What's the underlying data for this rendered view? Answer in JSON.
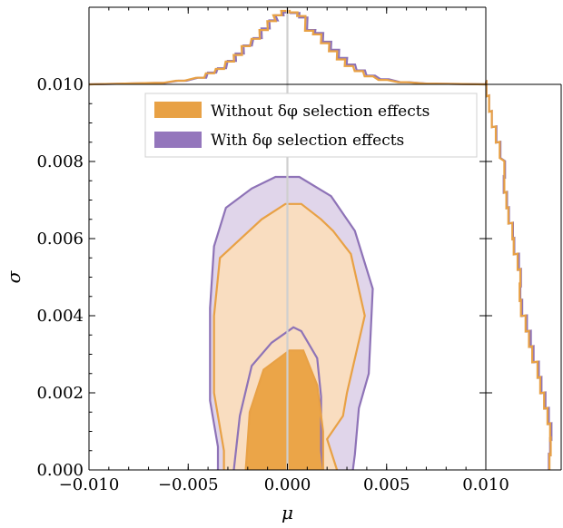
{
  "chart_data": {
    "type": "contour",
    "xlabel": "μ",
    "ylabel": "σ",
    "xlim": [
      -0.01,
      0.01
    ],
    "ylim": [
      0.0,
      0.01
    ],
    "x_ticks": [
      "−0.010",
      "−0.005",
      "0.000",
      "0.005",
      "0.010"
    ],
    "y_ticks": [
      "0.000",
      "0.002",
      "0.004",
      "0.006",
      "0.008",
      "0.010"
    ],
    "x_tick_values": [
      -0.01,
      -0.005,
      0.0,
      0.005,
      0.01
    ],
    "y_tick_values": [
      0.0,
      0.002,
      0.004,
      0.006,
      0.008,
      0.01
    ],
    "legend_position": "upper-center",
    "reference_line_x": 0.0,
    "colors": {
      "without_line": "#E8A145",
      "without_inner_fill": "#EBA548",
      "without_outer_fill": "#F9DDC0",
      "with_line": "#8E73B7",
      "with_outer_fill": "#E0D5EA",
      "reference_line": "#CFCFCF"
    },
    "series": [
      {
        "name": "Without δφ selection effects",
        "color": "#E8A145",
        "contour_68": [
          [
            -0.0021,
            0
          ],
          [
            -0.0019,
            0.0015
          ],
          [
            -0.0012,
            0.0026
          ],
          [
            0.0001,
            0.0031
          ],
          [
            0.0008,
            0.0031
          ],
          [
            0.0015,
            0.0022
          ],
          [
            0.0018,
            0.001
          ],
          [
            0.0018,
            0
          ]
        ],
        "contour_95": [
          [
            -0.0032,
            0
          ],
          [
            -0.0032,
            0.0005
          ],
          [
            -0.0037,
            0.002
          ],
          [
            -0.0037,
            0.004
          ],
          [
            -0.0034,
            0.0055
          ],
          [
            -0.0013,
            0.0065
          ],
          [
            -0.0001,
            0.0069
          ],
          [
            0.0007,
            0.0069
          ],
          [
            0.0017,
            0.0065
          ],
          [
            0.0023,
            0.0062
          ],
          [
            0.0032,
            0.0056
          ],
          [
            0.0039,
            0.004
          ],
          [
            0.003,
            0.002
          ],
          [
            0.0028,
            0.0014
          ],
          [
            0.002,
            0.0008
          ],
          [
            0.0025,
            0
          ]
        ],
        "mu_hist": [
          [
            -0.0065,
            0.02
          ],
          [
            -0.0054,
            0.05
          ],
          [
            -0.0044,
            0.09
          ],
          [
            -0.0039,
            0.15
          ],
          [
            -0.0034,
            0.21
          ],
          [
            -0.0029,
            0.31
          ],
          [
            -0.0025,
            0.4
          ],
          [
            -0.0021,
            0.52
          ],
          [
            -0.0016,
            0.62
          ],
          [
            -0.0012,
            0.74
          ],
          [
            -0.0008,
            0.86
          ],
          [
            -0.0005,
            0.94
          ],
          [
            -0.0001,
            1.0
          ],
          [
            0.0003,
            0.98
          ],
          [
            0.0007,
            0.93
          ],
          [
            0.0011,
            0.73
          ],
          [
            0.0015,
            0.68
          ],
          [
            0.0019,
            0.56
          ],
          [
            0.0023,
            0.45
          ],
          [
            0.0027,
            0.34
          ],
          [
            0.0031,
            0.25
          ],
          [
            0.0036,
            0.18
          ],
          [
            0.0041,
            0.11
          ],
          [
            0.0048,
            0.06
          ],
          [
            0.0058,
            0.03
          ],
          [
            0.0072,
            0.01
          ]
        ],
        "sigma_hist": [
          [
            0.0099,
            0.01
          ],
          [
            0.0095,
            0.05
          ],
          [
            0.0091,
            0.09
          ],
          [
            0.0087,
            0.15
          ],
          [
            0.0083,
            0.21
          ],
          [
            0.0078,
            0.28
          ],
          [
            0.0074,
            0.28
          ],
          [
            0.007,
            0.31
          ],
          [
            0.0066,
            0.34
          ],
          [
            0.0062,
            0.4
          ],
          [
            0.0058,
            0.42
          ],
          [
            0.0054,
            0.48
          ],
          [
            0.005,
            0.52
          ],
          [
            0.0046,
            0.51
          ],
          [
            0.0042,
            0.53
          ],
          [
            0.0038,
            0.6
          ],
          [
            0.0034,
            0.65
          ],
          [
            0.003,
            0.7
          ],
          [
            0.0026,
            0.78
          ],
          [
            0.0022,
            0.82
          ],
          [
            0.0018,
            0.88
          ],
          [
            0.0014,
            0.93
          ],
          [
            0.001,
            0.97
          ],
          [
            0.0006,
            0.98
          ],
          [
            0.0002,
            0.96
          ]
        ]
      },
      {
        "name": "With δφ selection effects",
        "color": "#8E73B7",
        "contour_68": [
          [
            -0.0027,
            0
          ],
          [
            -0.0024,
            0.0014
          ],
          [
            -0.0018,
            0.0027
          ],
          [
            -0.0008,
            0.0033
          ],
          [
            0.0003,
            0.0037
          ],
          [
            0.0007,
            0.0036
          ],
          [
            0.0015,
            0.0029
          ],
          [
            0.0017,
            0.0019
          ],
          [
            0.0017,
            0.0005
          ],
          [
            0.0018,
            0
          ]
        ],
        "contour_95": [
          [
            -0.0035,
            0
          ],
          [
            -0.0035,
            0.0006
          ],
          [
            -0.0039,
            0.0018
          ],
          [
            -0.0039,
            0.0042
          ],
          [
            -0.0037,
            0.0058
          ],
          [
            -0.0031,
            0.0068
          ],
          [
            -0.0018,
            0.0073
          ],
          [
            -0.0006,
            0.0076
          ],
          [
            0.0006,
            0.0076
          ],
          [
            0.0022,
            0.0071
          ],
          [
            0.0034,
            0.0062
          ],
          [
            0.0043,
            0.0047
          ],
          [
            0.0041,
            0.0025
          ],
          [
            0.0036,
            0.0016
          ],
          [
            0.0034,
            0.0004
          ],
          [
            0.0033,
            0
          ]
        ],
        "mu_hist": [
          [
            -0.0064,
            0.02
          ],
          [
            -0.0053,
            0.05
          ],
          [
            -0.0043,
            0.09
          ],
          [
            -0.0038,
            0.16
          ],
          [
            -0.0033,
            0.22
          ],
          [
            -0.0028,
            0.32
          ],
          [
            -0.0024,
            0.42
          ],
          [
            -0.002,
            0.53
          ],
          [
            -0.0015,
            0.63
          ],
          [
            -0.0011,
            0.76
          ],
          [
            -0.0007,
            0.87
          ],
          [
            -0.0004,
            0.94
          ],
          [
            0.0,
            0.98
          ],
          [
            0.0004,
            0.97
          ],
          [
            0.0008,
            0.91
          ],
          [
            0.0012,
            0.74
          ],
          [
            0.0016,
            0.7
          ],
          [
            0.002,
            0.58
          ],
          [
            0.0024,
            0.47
          ],
          [
            0.0028,
            0.36
          ],
          [
            0.0032,
            0.27
          ],
          [
            0.0037,
            0.19
          ],
          [
            0.0042,
            0.12
          ],
          [
            0.0049,
            0.07
          ],
          [
            0.0059,
            0.03
          ],
          [
            0.0073,
            0.01
          ]
        ],
        "sigma_hist": [
          [
            0.0099,
            0.01
          ],
          [
            0.0095,
            0.05
          ],
          [
            0.0091,
            0.09
          ],
          [
            0.0087,
            0.16
          ],
          [
            0.0083,
            0.22
          ],
          [
            0.0078,
            0.29
          ],
          [
            0.0074,
            0.27
          ],
          [
            0.007,
            0.32
          ],
          [
            0.0066,
            0.35
          ],
          [
            0.0062,
            0.41
          ],
          [
            0.0058,
            0.43
          ],
          [
            0.0054,
            0.5
          ],
          [
            0.005,
            0.53
          ],
          [
            0.0046,
            0.52
          ],
          [
            0.0042,
            0.55
          ],
          [
            0.0038,
            0.62
          ],
          [
            0.0034,
            0.68
          ],
          [
            0.003,
            0.72
          ],
          [
            0.0026,
            0.8
          ],
          [
            0.0022,
            0.84
          ],
          [
            0.0018,
            0.9
          ],
          [
            0.0014,
            0.95
          ],
          [
            0.001,
            0.99
          ],
          [
            0.0006,
            0.97
          ],
          [
            0.0002,
            0.95
          ]
        ]
      }
    ]
  }
}
